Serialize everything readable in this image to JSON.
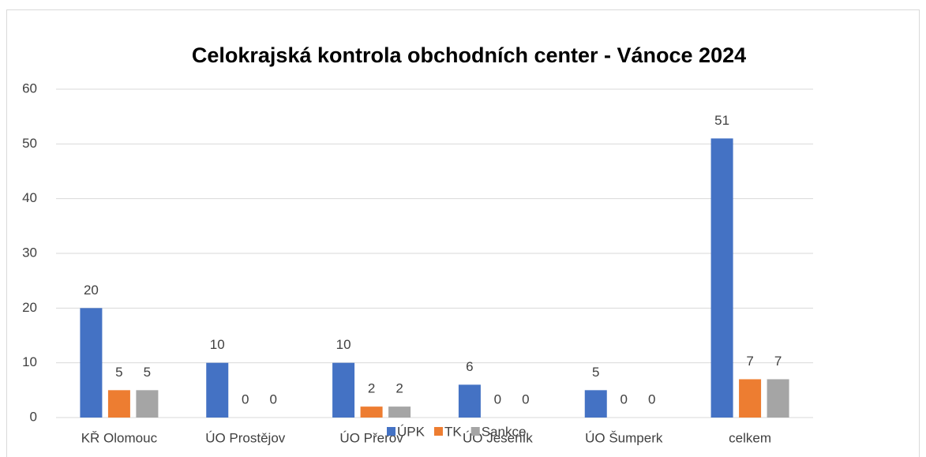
{
  "chart_data": {
    "type": "bar",
    "title": "Celokrajská kontrola obchodních center - Vánoce 2024",
    "categories": [
      "KŘ Olomouc",
      "ÚO Prostějov",
      "ÚO Přerov",
      "ÚO Jeseník",
      "ÚO Šumperk",
      "celkem"
    ],
    "series": [
      {
        "name": "ÚPK",
        "color": "#4472c4",
        "values": [
          20,
          10,
          10,
          6,
          5,
          51
        ]
      },
      {
        "name": "TK",
        "color": "#ed7d31",
        "values": [
          5,
          0,
          2,
          0,
          0,
          7
        ]
      },
      {
        "name": "Sankce",
        "color": "#a5a5a5",
        "values": [
          5,
          0,
          2,
          0,
          0,
          7
        ]
      }
    ],
    "ylim": [
      0,
      60
    ],
    "yticks": [
      0,
      10,
      20,
      30,
      40,
      50,
      60
    ],
    "grid": true,
    "legend": "bottom"
  }
}
